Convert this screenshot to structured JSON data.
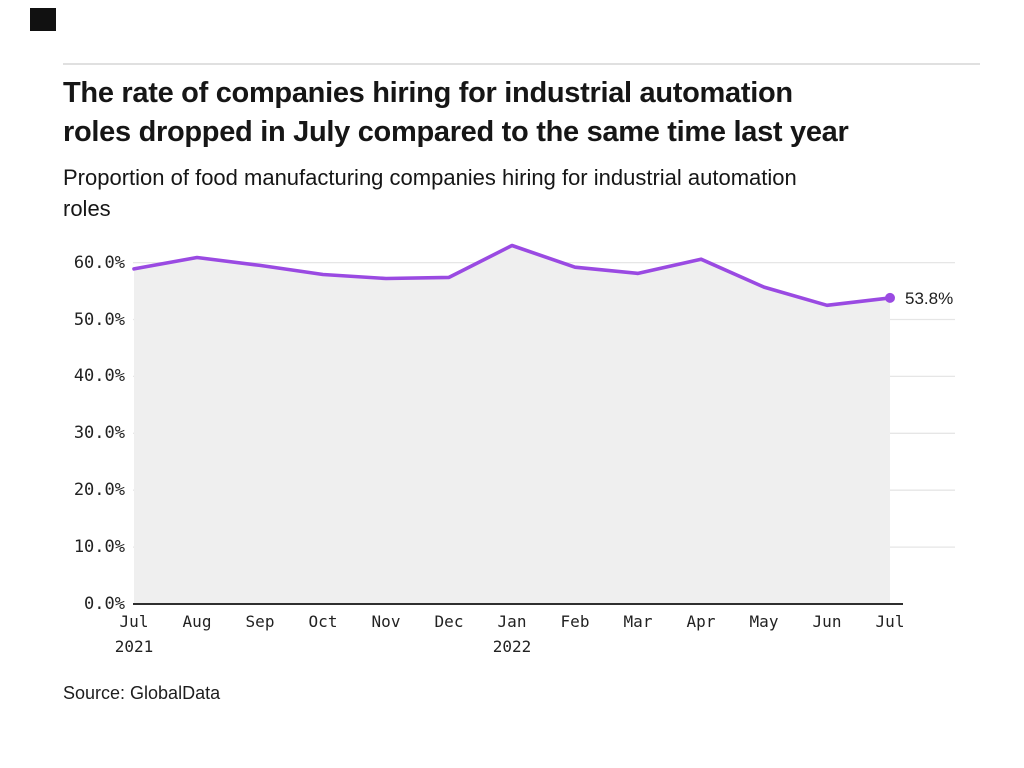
{
  "header": {
    "title": "The rate of companies hiring for industrial automation roles dropped in July compared to the same time last year",
    "title_lines": [
      "The rate of companies hiring for industrial automation",
      "roles dropped in July compared to the same time last year"
    ],
    "subtitle": "Proportion of food manufacturing companies hiring for industrial automation roles",
    "subtitle_lines": [
      "Proportion of food manufacturing companies hiring for industrial automation",
      "roles"
    ]
  },
  "footer": {
    "source": "Source: GlobalData"
  },
  "colors": {
    "line": "#9A4AE2",
    "area_fill": "#EFEFEF",
    "gridline": "#E6E6E6",
    "axis": "#2F2F2F",
    "text": "#161616",
    "divider": "#E0E0E0",
    "brand": "#111111"
  },
  "chart_data": {
    "type": "area",
    "title": "The rate of companies hiring for industrial automation roles dropped in July compared to the same time last year",
    "subtitle": "Proportion of food manufacturing companies hiring for industrial automation roles",
    "categories": [
      "Jul",
      "Aug",
      "Sep",
      "Oct",
      "Nov",
      "Dec",
      "Jan",
      "Feb",
      "Mar",
      "Apr",
      "May",
      "Jun",
      "Jul"
    ],
    "year_labels": [
      {
        "index": 0,
        "label": "2021"
      },
      {
        "index": 6,
        "label": "2022"
      }
    ],
    "series": [
      {
        "name": "Proportion of food manufacturing companies hiring for industrial automation roles",
        "values": [
          58.9,
          60.9,
          59.5,
          57.9,
          57.2,
          57.4,
          63.0,
          59.2,
          58.1,
          60.6,
          55.7,
          52.5,
          53.8
        ]
      }
    ],
    "ylim": [
      0,
      65
    ],
    "grid": true,
    "legend": "none",
    "y_ticks": [
      {
        "value": 0,
        "label": "0.0%"
      },
      {
        "value": 10,
        "label": "10.0%"
      },
      {
        "value": 20,
        "label": "20.0%"
      },
      {
        "value": 30,
        "label": "30.0%"
      },
      {
        "value": 40,
        "label": "40.0%"
      },
      {
        "value": 50,
        "label": "50.0%"
      },
      {
        "value": 60,
        "label": "60.0%"
      }
    ],
    "end_annotation": "53.8%",
    "source": "Source: GlobalData"
  }
}
